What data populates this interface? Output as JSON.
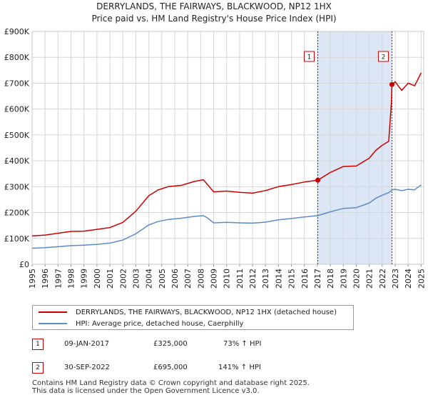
{
  "title_line1": "DERRYLANDS, THE FAIRWAYS, BLACKWOOD, NP12 1HX",
  "title_line2": "Price paid vs. HM Land Registry's House Price Index (HPI)",
  "colors": {
    "property": "#cc0000",
    "hpi": "#5b8cc8",
    "shade": "#dde6f5",
    "marker_line": "#cc0000"
  },
  "legend": {
    "property_label": "DERRYLANDS, THE FAIRWAYS, BLACKWOOD, NP12 1HX (detached house)",
    "hpi_label": "HPI: Average price, detached house, Caerphilly"
  },
  "transactions": [
    {
      "id": "1",
      "date": "09-JAN-2017",
      "price": "£325,000",
      "hpi_change": "73% ↑ HPI"
    },
    {
      "id": "2",
      "date": "30-SEP-2022",
      "price": "£695,000",
      "hpi_change": "141% ↑ HPI"
    }
  ],
  "footer_line1": "Contains HM Land Registry data © Crown copyright and database right 2025.",
  "footer_line2": "This data is licensed under the Open Government Licence v3.0.",
  "chart_data": {
    "type": "line",
    "title": "Price paid vs. HM Land Registry's House Price Index (HPI)",
    "xlabel": "",
    "ylabel": "",
    "xlim": [
      1995.0,
      2025.2
    ],
    "ylim": [
      0,
      900000
    ],
    "ytick_values": [
      0,
      100000,
      200000,
      300000,
      400000,
      500000,
      600000,
      700000,
      800000,
      900000
    ],
    "ytick_labels": [
      "£0",
      "£100K",
      "£200K",
      "£300K",
      "£400K",
      "£500K",
      "£600K",
      "£700K",
      "£800K",
      "£900K"
    ],
    "xtick_labels": [
      "1995",
      "1996",
      "1997",
      "1998",
      "1999",
      "2000",
      "2001",
      "2002",
      "2003",
      "2004",
      "2005",
      "2006",
      "2007",
      "2008",
      "2009",
      "2010",
      "2011",
      "2012",
      "2013",
      "2014",
      "2015",
      "2016",
      "2017",
      "2018",
      "2019",
      "2020",
      "2021",
      "2022",
      "2023",
      "2024",
      "2025"
    ],
    "grid": true,
    "shaded_region": [
      2017.03,
      2022.75
    ],
    "markers": [
      {
        "label": "1",
        "x": 2017.03,
        "y": 325000
      },
      {
        "label": "2",
        "x": 2022.75,
        "y": 695000
      }
    ],
    "series": [
      {
        "name": "DERRYLANDS, THE FAIRWAYS, BLACKWOOD, NP12 1HX (detached house)",
        "x": [
          1995.0,
          1996.0,
          1997.0,
          1998.0,
          1999.0,
          2000.0,
          2001.0,
          2002.0,
          2003.0,
          2004.0,
          2004.7,
          2005.5,
          2006.5,
          2007.5,
          2008.2,
          2008.5,
          2009.0,
          2010.0,
          2011.0,
          2012.0,
          2013.0,
          2014.0,
          2015.0,
          2016.0,
          2017.03,
          2018.0,
          2019.0,
          2020.0,
          2021.0,
          2021.5,
          2022.0,
          2022.5,
          2022.7,
          2022.75,
          2023.0,
          2023.5,
          2024.0,
          2024.5,
          2025.0
        ],
        "y": [
          110000,
          113000,
          120000,
          127000,
          128000,
          135000,
          142000,
          162000,
          205000,
          265000,
          287000,
          300000,
          305000,
          320000,
          327000,
          310000,
          280000,
          283000,
          278000,
          275000,
          285000,
          300000,
          308000,
          318000,
          325000,
          355000,
          378000,
          380000,
          410000,
          440000,
          460000,
          475000,
          620000,
          695000,
          705000,
          672000,
          700000,
          690000,
          740000
        ]
      },
      {
        "name": "HPI: Average price, detached house, Caerphilly",
        "x": [
          1995.0,
          1996.0,
          1997.0,
          1998.0,
          1999.0,
          2000.0,
          2001.0,
          2002.0,
          2003.0,
          2004.0,
          2004.7,
          2005.5,
          2006.5,
          2007.5,
          2008.2,
          2008.5,
          2009.0,
          2010.0,
          2011.0,
          2012.0,
          2013.0,
          2014.0,
          2015.0,
          2016.0,
          2017.03,
          2018.0,
          2019.0,
          2020.0,
          2021.0,
          2021.5,
          2022.0,
          2022.5,
          2022.7,
          2022.75,
          2023.0,
          2023.5,
          2024.0,
          2024.5,
          2025.0
        ],
        "y": [
          62000,
          64000,
          68000,
          72000,
          74000,
          77000,
          82000,
          94000,
          118000,
          152000,
          165000,
          173000,
          178000,
          185000,
          188000,
          180000,
          160000,
          162000,
          160000,
          159000,
          163000,
          172000,
          177000,
          183000,
          188000,
          203000,
          216000,
          219000,
          237000,
          255000,
          267000,
          277000,
          285000,
          288000,
          290000,
          285000,
          290000,
          288000,
          307000
        ]
      }
    ]
  }
}
